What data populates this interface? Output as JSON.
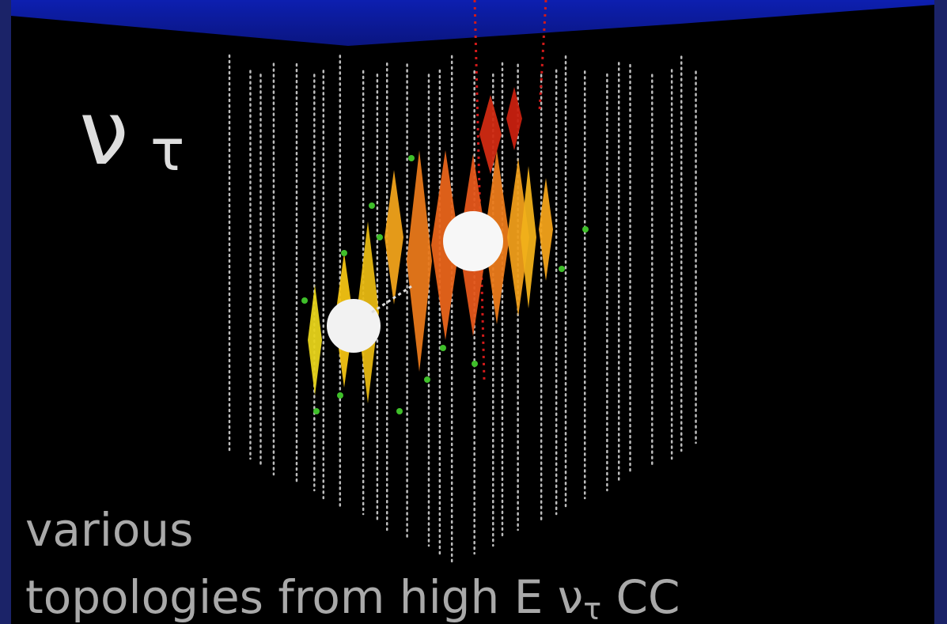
{
  "title": {
    "symbol": "ν",
    "subscript": "τ"
  },
  "caption": {
    "line1": "various",
    "line2": {
      "text": "topologies from high E ν",
      "subscript": "τ",
      "tail": " CC"
    }
  }
}
